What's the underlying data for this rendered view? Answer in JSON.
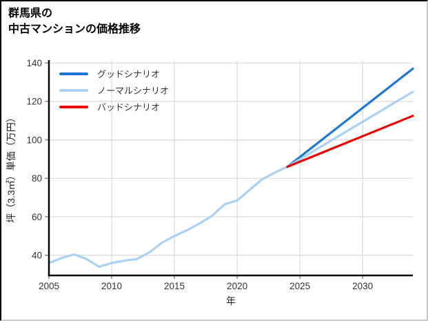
{
  "window": {
    "background": "#ffffff"
  },
  "title": {
    "line1": "群馬県の",
    "line2": "中古マンションの価格推移"
  },
  "chart_data": {
    "type": "line",
    "title": "群馬県の中古マンションの価格推移",
    "xlabel": "年",
    "ylabel": "坪（3.3㎡）単価（万円）",
    "xlim": [
      2005,
      2034
    ],
    "ylim": [
      29.5,
      141.5
    ],
    "xticks": [
      2005,
      2010,
      2015,
      2020,
      2025,
      2030
    ],
    "yticks": [
      40,
      60,
      80,
      100,
      120,
      140
    ],
    "grid": true,
    "grid_color": "#d9d9d9",
    "spine_color": "#000000",
    "tick_color": "#888888",
    "legend_position": "upper-left",
    "forecast_start_year": 2024,
    "series": [
      {
        "name": "グッドシナリオ",
        "color": "#1976d2",
        "points": [
          [
            2024,
            86
          ],
          [
            2034,
            137
          ]
        ]
      },
      {
        "name": "ノーマルシナリオ",
        "color": "#a9d1f7",
        "points": [
          [
            2005,
            36
          ],
          [
            2006,
            38.5
          ],
          [
            2007,
            40.5
          ],
          [
            2008,
            38
          ],
          [
            2009,
            34
          ],
          [
            2010,
            36
          ],
          [
            2011,
            37.2
          ],
          [
            2012,
            38
          ],
          [
            2013,
            41.5
          ],
          [
            2014,
            46.5
          ],
          [
            2015,
            50
          ],
          [
            2016,
            53
          ],
          [
            2017,
            56.5
          ],
          [
            2018,
            60.5
          ],
          [
            2019,
            66.5
          ],
          [
            2020,
            68.5
          ],
          [
            2021,
            74
          ],
          [
            2022,
            79.5
          ],
          [
            2023,
            83
          ],
          [
            2024,
            86
          ],
          [
            2034,
            125
          ]
        ]
      },
      {
        "name": "バッドシナリオ",
        "color": "#ee0000",
        "points": [
          [
            2024,
            86
          ],
          [
            2034,
            112.5
          ]
        ]
      }
    ]
  }
}
